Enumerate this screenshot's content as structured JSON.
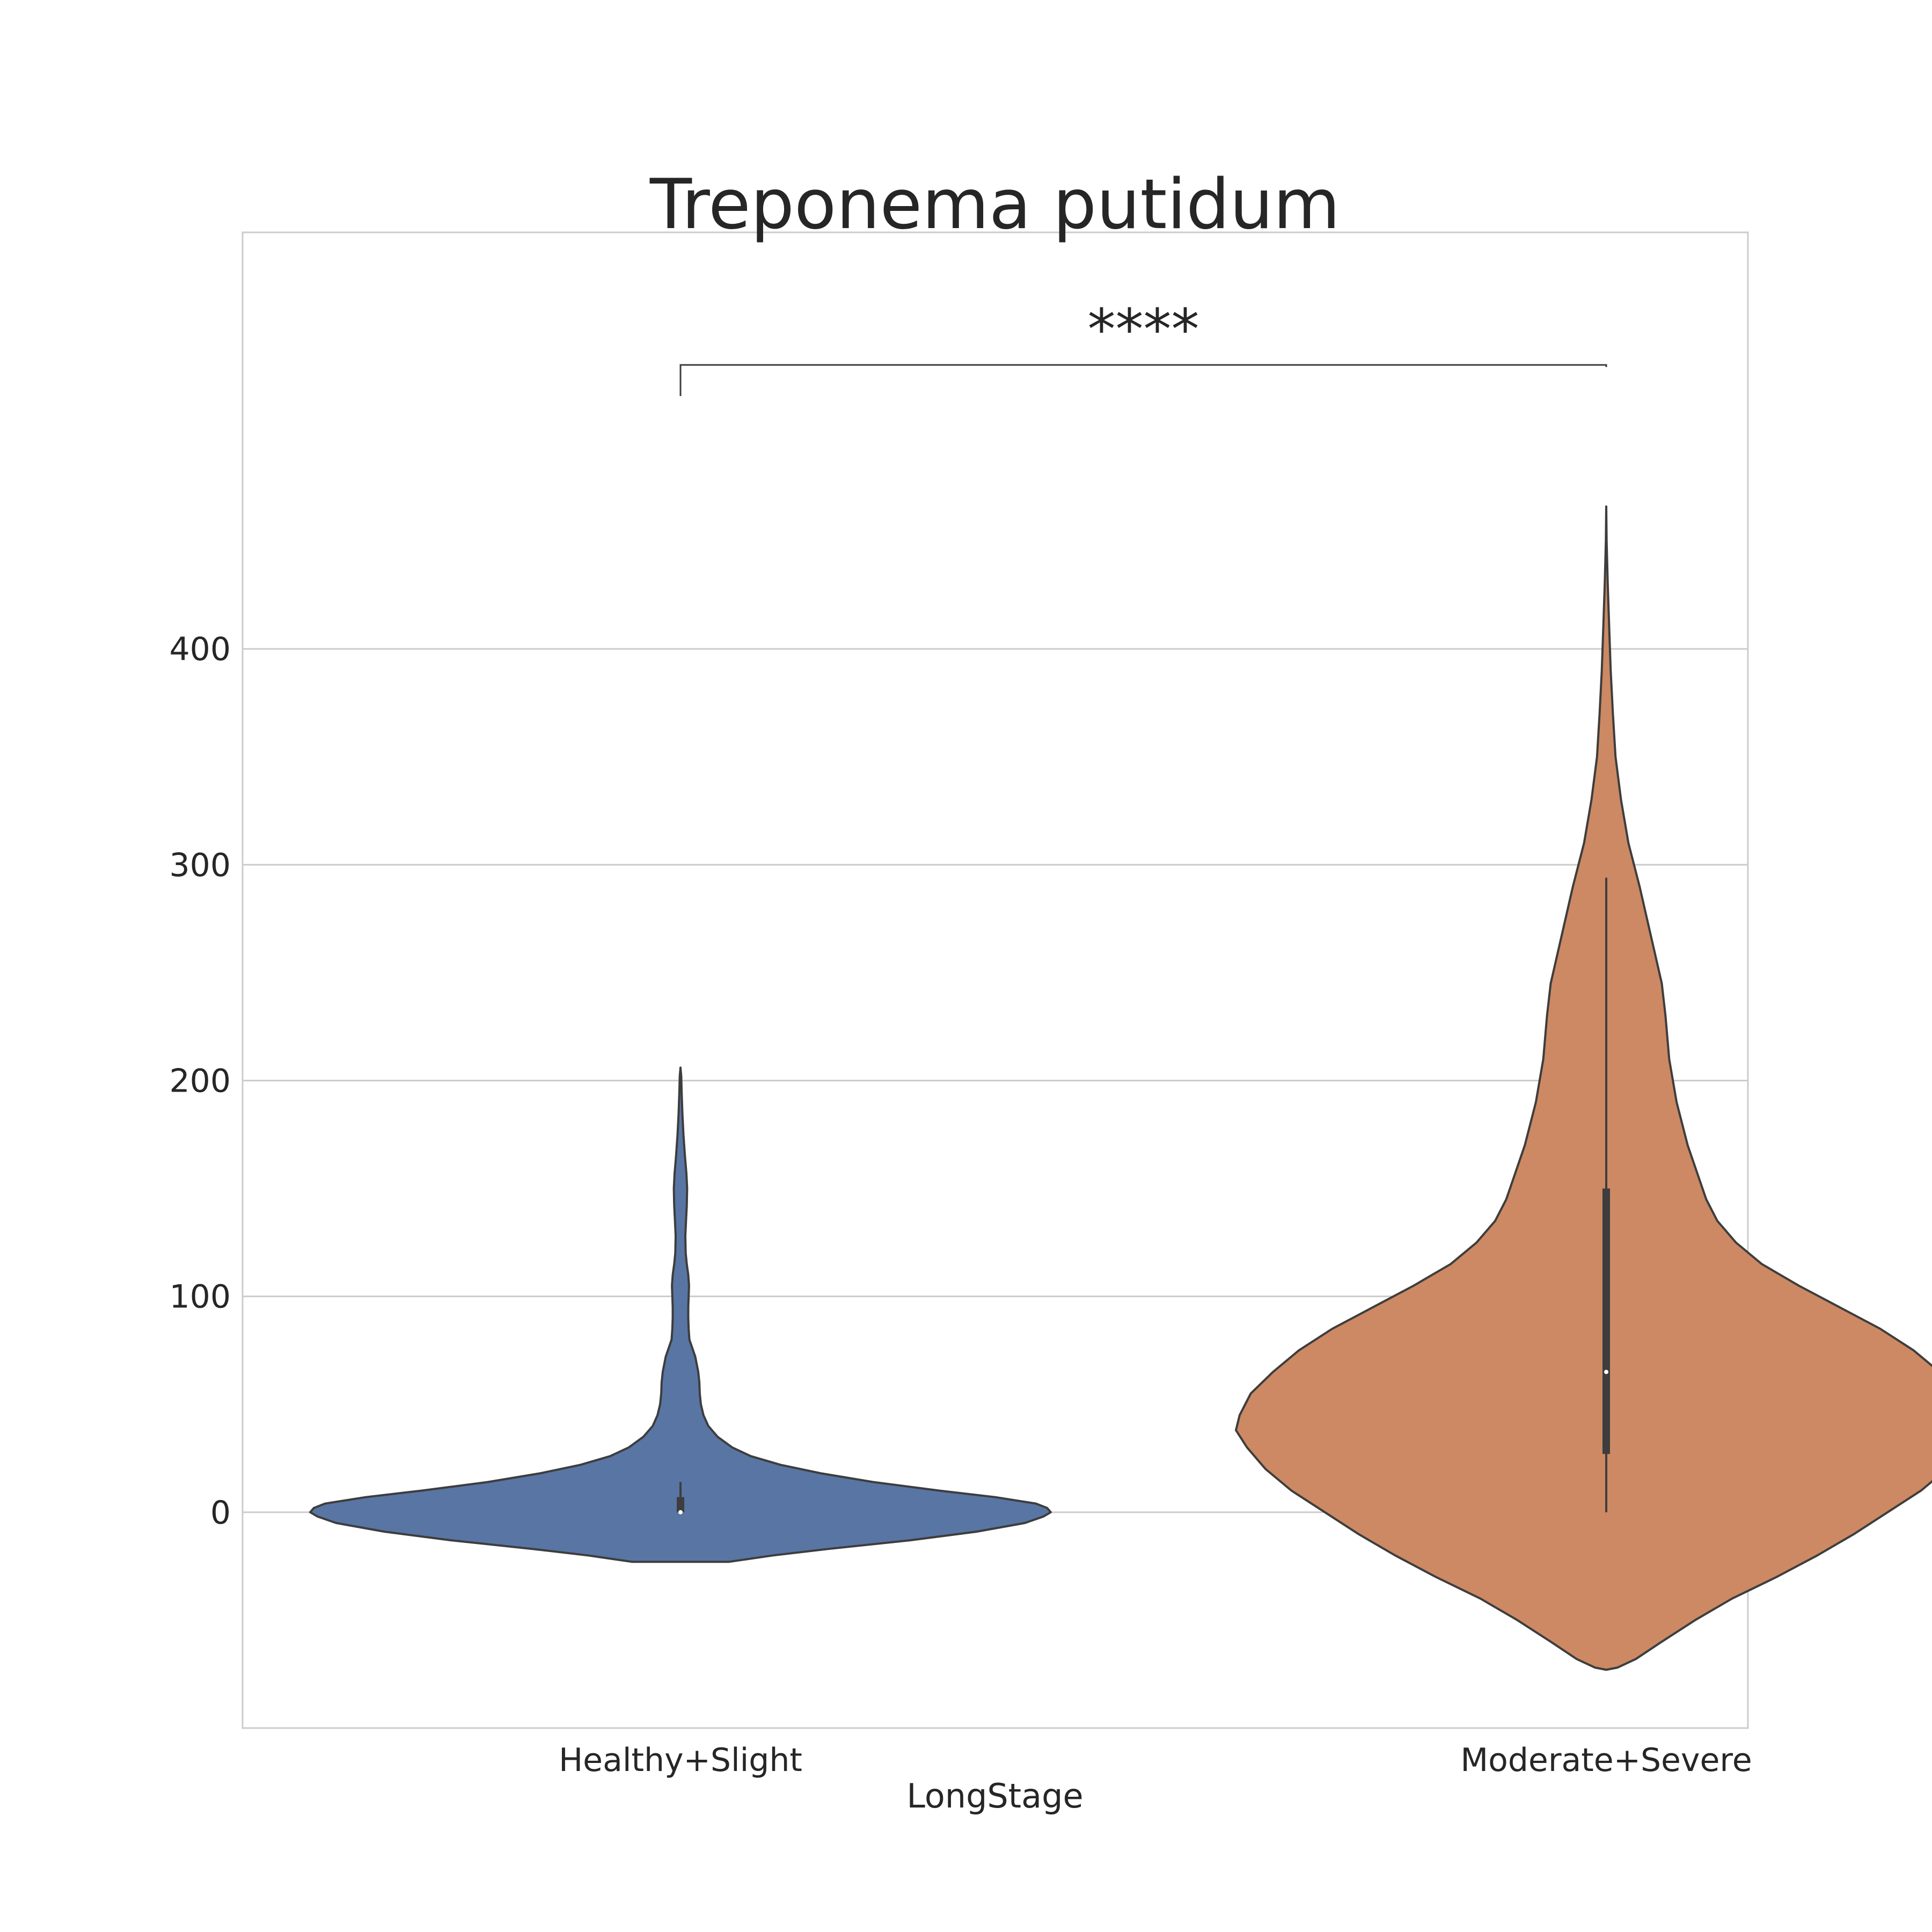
{
  "chart_data": {
    "type": "violin",
    "title": "Treponema putidum",
    "xlabel": "LongStage",
    "ylabel": "",
    "categories": [
      "Healthy+Slight",
      "Moderate+Severe"
    ],
    "ylim": [
      -100,
      593
    ],
    "yticks": [
      0,
      100,
      200,
      300,
      400
    ],
    "grid": true,
    "legend": "none",
    "colors": {
      "Healthy+Slight": "#5875a4",
      "Moderate+Severe": "#cc8963",
      "outline": "#3d3d3d",
      "grid": "#cccccc"
    },
    "series": [
      {
        "category": "Healthy+Slight",
        "box": {
          "q1": 0,
          "median": 0,
          "q3": 7,
          "whisker_low": 0,
          "whisker_high": 14
        },
        "density": [
          [
            -23,
            0.13
          ],
          [
            -20,
            0.25
          ],
          [
            -17,
            0.4
          ],
          [
            -13,
            0.62
          ],
          [
            -9,
            0.8
          ],
          [
            -5,
            0.93
          ],
          [
            -2,
            0.98
          ],
          [
            0,
            1.0
          ],
          [
            2,
            0.99
          ],
          [
            4,
            0.96
          ],
          [
            7,
            0.85
          ],
          [
            10,
            0.7
          ],
          [
            14,
            0.52
          ],
          [
            18,
            0.38
          ],
          [
            22,
            0.27
          ],
          [
            26,
            0.19
          ],
          [
            30,
            0.14
          ],
          [
            35,
            0.1
          ],
          [
            40,
            0.075
          ],
          [
            45,
            0.062
          ],
          [
            50,
            0.055
          ],
          [
            55,
            0.052
          ],
          [
            60,
            0.051
          ],
          [
            65,
            0.048
          ],
          [
            72,
            0.04
          ],
          [
            80,
            0.024
          ],
          [
            85,
            0.022
          ],
          [
            90,
            0.021
          ],
          [
            95,
            0.021
          ],
          [
            100,
            0.022
          ],
          [
            105,
            0.023
          ],
          [
            110,
            0.021
          ],
          [
            115,
            0.017
          ],
          [
            120,
            0.014
          ],
          [
            128,
            0.013
          ],
          [
            135,
            0.015
          ],
          [
            142,
            0.017
          ],
          [
            150,
            0.018
          ],
          [
            157,
            0.016
          ],
          [
            165,
            0.012
          ],
          [
            175,
            0.008
          ],
          [
            185,
            0.005
          ],
          [
            195,
            0.003
          ],
          [
            202,
            0.002
          ],
          [
            206,
            0.0
          ]
        ]
      },
      {
        "category": "Moderate+Severe",
        "box": {
          "q1": 27,
          "median": 65,
          "q3": 150,
          "whisker_low": 0,
          "whisker_high": 294
        },
        "density": [
          [
            -73,
            0.0
          ],
          [
            -72,
            0.03
          ],
          [
            -68,
            0.08
          ],
          [
            -60,
            0.15
          ],
          [
            -50,
            0.24
          ],
          [
            -40,
            0.34
          ],
          [
            -30,
            0.46
          ],
          [
            -20,
            0.57
          ],
          [
            -10,
            0.67
          ],
          [
            0,
            0.76
          ],
          [
            10,
            0.85
          ],
          [
            20,
            0.92
          ],
          [
            30,
            0.97
          ],
          [
            38,
            1.0
          ],
          [
            45,
            0.99
          ],
          [
            55,
            0.96
          ],
          [
            65,
            0.9
          ],
          [
            75,
            0.83
          ],
          [
            85,
            0.74
          ],
          [
            95,
            0.63
          ],
          [
            105,
            0.52
          ],
          [
            115,
            0.42
          ],
          [
            125,
            0.35
          ],
          [
            135,
            0.3
          ],
          [
            145,
            0.27
          ],
          [
            155,
            0.25
          ],
          [
            170,
            0.22
          ],
          [
            190,
            0.19
          ],
          [
            210,
            0.17
          ],
          [
            230,
            0.16
          ],
          [
            245,
            0.15
          ],
          [
            260,
            0.13
          ],
          [
            275,
            0.11
          ],
          [
            290,
            0.09
          ],
          [
            310,
            0.06
          ],
          [
            330,
            0.04
          ],
          [
            350,
            0.025
          ],
          [
            370,
            0.018
          ],
          [
            390,
            0.012
          ],
          [
            410,
            0.008
          ],
          [
            430,
            0.004
          ],
          [
            450,
            0.001
          ],
          [
            466,
            0.0
          ]
        ]
      }
    ],
    "annotations": [
      {
        "text": "****",
        "from": "Healthy+Slight",
        "to": "Moderate+Severe"
      }
    ]
  }
}
